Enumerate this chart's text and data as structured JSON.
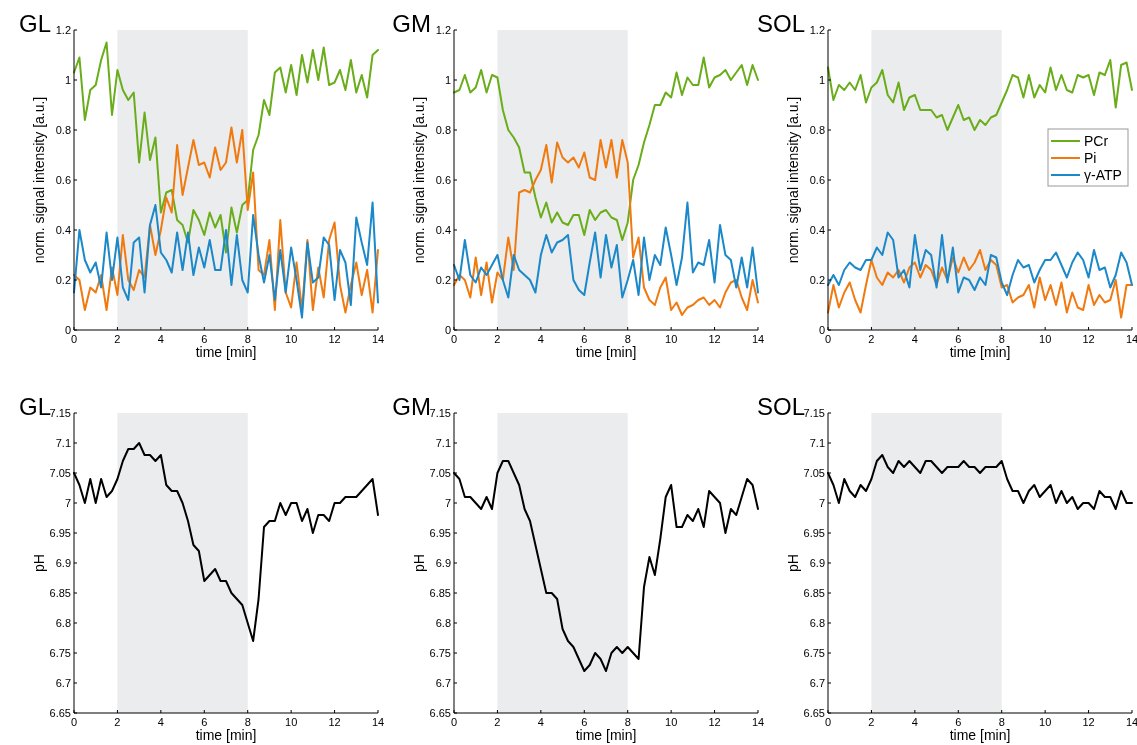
{
  "chart_data": [
    {
      "type": "line",
      "title": "GL",
      "xlabel": "time [min]",
      "ylabel": "norm. signal intensity [a.u.]",
      "xlim": [
        0,
        14
      ],
      "xticks": [
        0,
        2,
        4,
        6,
        8,
        10,
        12,
        14
      ],
      "ylim": [
        0,
        1.2
      ],
      "yticks": [
        0,
        0.2,
        0.4,
        0.6,
        0.8,
        1,
        1.2
      ],
      "bands": [
        {
          "axis": "x",
          "from": 2,
          "to": 8,
          "color": "#ebecee"
        }
      ],
      "legend": false,
      "line_style": "solid",
      "x": [
        0,
        0.25,
        0.5,
        0.75,
        1,
        1.25,
        1.5,
        1.75,
        2,
        2.25,
        2.5,
        2.75,
        3,
        3.25,
        3.5,
        3.75,
        4,
        4.25,
        4.5,
        4.75,
        5,
        5.25,
        5.5,
        5.75,
        6,
        6.25,
        6.5,
        6.75,
        7,
        7.25,
        7.5,
        7.75,
        8,
        8.25,
        8.5,
        8.75,
        9,
        9.25,
        9.5,
        9.75,
        10,
        10.25,
        10.5,
        10.75,
        11,
        11.25,
        11.5,
        11.75,
        12,
        12.25,
        12.5,
        12.75,
        13,
        13.25,
        13.5,
        13.75,
        14
      ],
      "series": [
        {
          "color": "#6aad1a",
          "values": [
            1.03,
            1.09,
            0.84,
            0.96,
            0.98,
            1.08,
            1.15,
            0.86,
            1.04,
            0.96,
            0.92,
            0.95,
            0.67,
            0.87,
            0.68,
            0.77,
            0.47,
            0.55,
            0.56,
            0.44,
            0.42,
            0.35,
            0.48,
            0.44,
            0.38,
            0.47,
            0.41,
            0.46,
            0.31,
            0.49,
            0.39,
            0.5,
            0.52,
            0.72,
            0.78,
            0.92,
            0.86,
            1.03,
            1.05,
            0.95,
            1.06,
            0.94,
            1.1,
            0.99,
            1.12,
            1.0,
            1.13,
            0.98,
            0.99,
            1.04,
            0.96,
            1.08,
            0.95,
            1.02,
            0.93,
            1.1,
            1.12
          ]
        },
        {
          "color": "#f07a10",
          "values": [
            0.22,
            0.2,
            0.08,
            0.17,
            0.15,
            0.22,
            0.08,
            0.25,
            0.14,
            0.38,
            0.2,
            0.16,
            0.24,
            0.21,
            0.42,
            0.3,
            0.4,
            0.53,
            0.47,
            0.74,
            0.54,
            0.65,
            0.76,
            0.66,
            0.67,
            0.61,
            0.73,
            0.64,
            0.67,
            0.81,
            0.67,
            0.8,
            0.48,
            0.63,
            0.24,
            0.22,
            0.36,
            0.08,
            0.44,
            0.15,
            0.09,
            0.27,
            0.08,
            0.36,
            0.08,
            0.25,
            0.13,
            0.36,
            0.43,
            0.18,
            0.07,
            0.18,
            0.27,
            0.14,
            0.24,
            0.07,
            0.32
          ]
        },
        {
          "color": "#1a88c9",
          "values": [
            0.15,
            0.4,
            0.28,
            0.23,
            0.27,
            0.17,
            0.39,
            0.2,
            0.37,
            0.17,
            0.12,
            0.35,
            0.37,
            0.15,
            0.42,
            0.5,
            0.31,
            0.28,
            0.23,
            0.39,
            0.24,
            0.39,
            0.22,
            0.33,
            0.25,
            0.36,
            0.24,
            0.24,
            0.4,
            0.18,
            0.38,
            0.2,
            0.15,
            0.46,
            0.3,
            0.19,
            0.3,
            0.12,
            0.32,
            0.15,
            0.33,
            0.2,
            0.05,
            0.35,
            0.19,
            0.21,
            0.37,
            0.34,
            0.12,
            0.32,
            0.27,
            0.1,
            0.45,
            0.35,
            0.26,
            0.51,
            0.11
          ]
        }
      ]
    },
    {
      "type": "line",
      "title": "GM",
      "xlabel": "time [min]",
      "ylabel": "norm. signal intensity [a.u.]",
      "xlim": [
        0,
        14
      ],
      "xticks": [
        0,
        2,
        4,
        6,
        8,
        10,
        12,
        14
      ],
      "ylim": [
        0,
        1.2
      ],
      "yticks": [
        0,
        0.2,
        0.4,
        0.6,
        0.8,
        1,
        1.2
      ],
      "bands": [
        {
          "axis": "x",
          "from": 2,
          "to": 8,
          "color": "#ebecee"
        }
      ],
      "legend": false,
      "line_style": "solid",
      "x": [
        0,
        0.25,
        0.5,
        0.75,
        1,
        1.25,
        1.5,
        1.75,
        2,
        2.25,
        2.5,
        2.75,
        3,
        3.25,
        3.5,
        3.75,
        4,
        4.25,
        4.5,
        4.75,
        5,
        5.25,
        5.5,
        5.75,
        6,
        6.25,
        6.5,
        6.75,
        7,
        7.25,
        7.5,
        7.75,
        8,
        8.25,
        8.5,
        8.75,
        9,
        9.25,
        9.5,
        9.75,
        10,
        10.25,
        10.5,
        10.75,
        11,
        11.25,
        11.5,
        11.75,
        12,
        12.25,
        12.5,
        12.75,
        13,
        13.25,
        13.5,
        13.75,
        14
      ],
      "series": [
        {
          "color": "#6aad1a",
          "values": [
            0.95,
            0.96,
            1.02,
            0.95,
            0.97,
            1.04,
            0.95,
            1.02,
            1.01,
            0.88,
            0.8,
            0.77,
            0.73,
            0.63,
            0.63,
            0.53,
            0.45,
            0.51,
            0.43,
            0.47,
            0.43,
            0.42,
            0.46,
            0.46,
            0.38,
            0.48,
            0.44,
            0.47,
            0.48,
            0.45,
            0.44,
            0.36,
            0.43,
            0.6,
            0.66,
            0.75,
            0.82,
            0.9,
            0.9,
            0.95,
            0.93,
            1.03,
            0.94,
            1.01,
            0.98,
            0.98,
            1.09,
            0.97,
            1.01,
            1.02,
            1.04,
            1.0,
            1.03,
            1.06,
            0.98,
            1.06,
            1.0
          ]
        },
        {
          "color": "#f07a10",
          "values": [
            0.18,
            0.22,
            0.2,
            0.13,
            0.29,
            0.14,
            0.27,
            0.11,
            0.23,
            0.2,
            0.37,
            0.24,
            0.55,
            0.56,
            0.55,
            0.6,
            0.64,
            0.74,
            0.59,
            0.75,
            0.69,
            0.67,
            0.69,
            0.65,
            0.71,
            0.61,
            0.6,
            0.76,
            0.65,
            0.76,
            0.61,
            0.76,
            0.67,
            0.29,
            0.37,
            0.17,
            0.12,
            0.1,
            0.17,
            0.21,
            0.08,
            0.11,
            0.06,
            0.09,
            0.1,
            0.12,
            0.13,
            0.1,
            0.12,
            0.09,
            0.15,
            0.19,
            0.2,
            0.13,
            0.08,
            0.2,
            0.11
          ]
        },
        {
          "color": "#1a88c9",
          "values": [
            0.26,
            0.2,
            0.36,
            0.22,
            0.19,
            0.25,
            0.22,
            0.26,
            0.3,
            0.2,
            0.13,
            0.3,
            0.24,
            0.22,
            0.2,
            0.15,
            0.3,
            0.38,
            0.31,
            0.35,
            0.36,
            0.38,
            0.2,
            0.16,
            0.14,
            0.27,
            0.39,
            0.21,
            0.38,
            0.25,
            0.34,
            0.13,
            0.2,
            0.28,
            0.14,
            0.37,
            0.2,
            0.3,
            0.26,
            0.41,
            0.3,
            0.18,
            0.29,
            0.51,
            0.23,
            0.27,
            0.26,
            0.36,
            0.19,
            0.42,
            0.3,
            0.28,
            0.17,
            0.29,
            0.17,
            0.33,
            0.15
          ]
        }
      ]
    },
    {
      "type": "line",
      "title": "SOL",
      "xlabel": "time [min]",
      "ylabel": "norm. signal intensity [a.u.]",
      "xlim": [
        0,
        14
      ],
      "xticks": [
        0,
        2,
        4,
        6,
        8,
        10,
        12,
        14
      ],
      "ylim": [
        0,
        1.2
      ],
      "yticks": [
        0,
        0.2,
        0.4,
        0.6,
        0.8,
        1,
        1.2
      ],
      "bands": [
        {
          "axis": "x",
          "from": 2,
          "to": 8,
          "color": "#ebecee"
        }
      ],
      "legend": "right",
      "line_style": "solid",
      "x": [
        0,
        0.25,
        0.5,
        0.75,
        1,
        1.25,
        1.5,
        1.75,
        2,
        2.25,
        2.5,
        2.75,
        3,
        3.25,
        3.5,
        3.75,
        4,
        4.25,
        4.5,
        4.75,
        5,
        5.25,
        5.5,
        5.75,
        6,
        6.25,
        6.5,
        6.75,
        7,
        7.25,
        7.5,
        7.75,
        8,
        8.25,
        8.5,
        8.75,
        9,
        9.25,
        9.5,
        9.75,
        10,
        10.25,
        10.5,
        10.75,
        11,
        11.25,
        11.5,
        11.75,
        12,
        12.25,
        12.5,
        12.75,
        13,
        13.25,
        13.5,
        13.75,
        14
      ],
      "series": [
        {
          "name": "PCr",
          "color": "#6aad1a",
          "values": [
            1.05,
            0.92,
            0.98,
            0.96,
            0.99,
            0.96,
            1.02,
            0.91,
            0.97,
            0.99,
            1.04,
            0.94,
            0.91,
            0.99,
            0.88,
            0.93,
            0.94,
            0.88,
            0.88,
            0.88,
            0.85,
            0.86,
            0.8,
            0.85,
            0.9,
            0.84,
            0.85,
            0.8,
            0.84,
            0.82,
            0.85,
            0.86,
            0.91,
            0.96,
            1.02,
            1.01,
            0.93,
            1.02,
            0.93,
            0.98,
            0.95,
            1.05,
            0.96,
            1.02,
            0.96,
            0.95,
            1.02,
            1.01,
            1.02,
            0.94,
            1.03,
            1.02,
            1.08,
            0.89,
            1.06,
            1.07,
            0.96
          ]
        },
        {
          "name": "Pi",
          "color": "#f07a10",
          "values": [
            0.07,
            0.18,
            0.09,
            0.15,
            0.19,
            0.12,
            0.07,
            0.18,
            0.28,
            0.21,
            0.18,
            0.23,
            0.21,
            0.24,
            0.19,
            0.25,
            0.27,
            0.21,
            0.26,
            0.24,
            0.18,
            0.25,
            0.2,
            0.29,
            0.23,
            0.29,
            0.24,
            0.27,
            0.32,
            0.24,
            0.28,
            0.26,
            0.17,
            0.18,
            0.11,
            0.13,
            0.14,
            0.18,
            0.09,
            0.21,
            0.12,
            0.18,
            0.1,
            0.19,
            0.07,
            0.15,
            0.09,
            0.08,
            0.18,
            0.1,
            0.14,
            0.11,
            0.12,
            0.2,
            0.05,
            0.18,
            0.18
          ]
        },
        {
          "name": "γ-ATP",
          "color": "#1a88c9",
          "values": [
            0.18,
            0.22,
            0.18,
            0.24,
            0.27,
            0.25,
            0.24,
            0.28,
            0.28,
            0.33,
            0.3,
            0.39,
            0.36,
            0.21,
            0.24,
            0.17,
            0.38,
            0.24,
            0.32,
            0.3,
            0.17,
            0.38,
            0.19,
            0.33,
            0.15,
            0.21,
            0.2,
            0.16,
            0.21,
            0.18,
            0.3,
            0.29,
            0.19,
            0.14,
            0.22,
            0.28,
            0.25,
            0.26,
            0.19,
            0.24,
            0.28,
            0.28,
            0.31,
            0.26,
            0.21,
            0.27,
            0.31,
            0.28,
            0.21,
            0.32,
            0.24,
            0.25,
            0.17,
            0.22,
            0.31,
            0.27,
            0.18
          ]
        }
      ]
    },
    {
      "type": "line",
      "title": "GL",
      "xlabel": "time [min]",
      "ylabel": "pH",
      "xlim": [
        0,
        14
      ],
      "xticks": [
        0,
        2,
        4,
        6,
        8,
        10,
        12,
        14
      ],
      "ylim": [
        6.65,
        7.15
      ],
      "yticks": [
        6.65,
        6.7,
        6.75,
        6.8,
        6.85,
        6.9,
        6.95,
        7,
        7.05,
        7.1,
        7.15
      ],
      "bands": [
        {
          "axis": "x",
          "from": 2,
          "to": 8,
          "color": "#ebecee"
        }
      ],
      "legend": false,
      "line_style": "solid",
      "x": [
        0,
        0.25,
        0.5,
        0.75,
        1,
        1.25,
        1.5,
        1.75,
        2,
        2.25,
        2.5,
        2.75,
        3,
        3.25,
        3.5,
        3.75,
        4,
        4.25,
        4.5,
        4.75,
        5,
        5.25,
        5.5,
        5.75,
        6,
        6.25,
        6.5,
        6.75,
        7,
        7.25,
        7.5,
        7.75,
        8,
        8.25,
        8.5,
        8.75,
        9,
        9.25,
        9.5,
        9.75,
        10,
        10.25,
        10.5,
        10.75,
        11,
        11.25,
        11.5,
        11.75,
        12,
        12.25,
        12.5,
        12.75,
        13,
        13.25,
        13.5,
        13.75,
        14
      ],
      "series": [
        {
          "color": "#000000",
          "values": [
            7.05,
            7.03,
            7.0,
            7.04,
            7.0,
            7.04,
            7.01,
            7.02,
            7.04,
            7.07,
            7.09,
            7.09,
            7.1,
            7.08,
            7.08,
            7.07,
            7.08,
            7.03,
            7.02,
            7.02,
            7.0,
            6.97,
            6.93,
            6.92,
            6.87,
            6.88,
            6.89,
            6.87,
            6.87,
            6.85,
            6.84,
            6.83,
            6.8,
            6.77,
            6.84,
            6.96,
            6.97,
            6.97,
            7.0,
            6.98,
            7.0,
            7.0,
            6.97,
            6.99,
            6.95,
            6.98,
            6.98,
            6.97,
            7.0,
            7.0,
            7.01,
            7.01,
            7.01,
            7.02,
            7.03,
            7.04,
            6.98
          ]
        }
      ]
    },
    {
      "type": "line",
      "title": "GM",
      "xlabel": "time [min]",
      "ylabel": "pH",
      "xlim": [
        0,
        14
      ],
      "xticks": [
        0,
        2,
        4,
        6,
        8,
        10,
        12,
        14
      ],
      "ylim": [
        6.65,
        7.15
      ],
      "yticks": [
        6.65,
        6.7,
        6.75,
        6.8,
        6.85,
        6.9,
        6.95,
        7,
        7.05,
        7.1,
        7.15
      ],
      "bands": [
        {
          "axis": "x",
          "from": 2,
          "to": 8,
          "color": "#ebecee"
        }
      ],
      "legend": false,
      "line_style": "solid",
      "x": [
        0,
        0.25,
        0.5,
        0.75,
        1,
        1.25,
        1.5,
        1.75,
        2,
        2.25,
        2.5,
        2.75,
        3,
        3.25,
        3.5,
        3.75,
        4,
        4.25,
        4.5,
        4.75,
        5,
        5.25,
        5.5,
        5.75,
        6,
        6.25,
        6.5,
        6.75,
        7,
        7.25,
        7.5,
        7.75,
        8,
        8.25,
        8.5,
        8.75,
        9,
        9.25,
        9.5,
        9.75,
        10,
        10.25,
        10.5,
        10.75,
        11,
        11.25,
        11.5,
        11.75,
        12,
        12.25,
        12.5,
        12.75,
        13,
        13.25,
        13.5,
        13.75,
        14
      ],
      "series": [
        {
          "color": "#000000",
          "values": [
            7.05,
            7.04,
            7.01,
            7.01,
            7.0,
            6.99,
            7.01,
            6.99,
            7.05,
            7.07,
            7.07,
            7.05,
            7.03,
            6.99,
            6.97,
            6.93,
            6.89,
            6.85,
            6.85,
            6.84,
            6.79,
            6.77,
            6.76,
            6.74,
            6.72,
            6.73,
            6.75,
            6.74,
            6.72,
            6.75,
            6.76,
            6.75,
            6.76,
            6.75,
            6.74,
            6.86,
            6.91,
            6.88,
            6.94,
            7.01,
            7.03,
            6.96,
            6.96,
            6.98,
            6.97,
            6.99,
            6.96,
            7.02,
            7.01,
            7.0,
            6.95,
            6.99,
            6.98,
            7.01,
            7.04,
            7.03,
            6.99
          ]
        }
      ]
    },
    {
      "type": "line",
      "title": "SOL",
      "xlabel": "time [min]",
      "ylabel": "pH",
      "xlim": [
        0,
        14
      ],
      "xticks": [
        0,
        2,
        4,
        6,
        8,
        10,
        12,
        14
      ],
      "ylim": [
        6.65,
        7.15
      ],
      "yticks": [
        6.65,
        6.7,
        6.75,
        6.8,
        6.85,
        6.9,
        6.95,
        7,
        7.05,
        7.1,
        7.15
      ],
      "bands": [
        {
          "axis": "x",
          "from": 2,
          "to": 8,
          "color": "#ebecee"
        }
      ],
      "legend": false,
      "line_style": "solid",
      "x": [
        0,
        0.25,
        0.5,
        0.75,
        1,
        1.25,
        1.5,
        1.75,
        2,
        2.25,
        2.5,
        2.75,
        3,
        3.25,
        3.5,
        3.75,
        4,
        4.25,
        4.5,
        4.75,
        5,
        5.25,
        5.5,
        5.75,
        6,
        6.25,
        6.5,
        6.75,
        7,
        7.25,
        7.5,
        7.75,
        8,
        8.25,
        8.5,
        8.75,
        9,
        9.25,
        9.5,
        9.75,
        10,
        10.25,
        10.5,
        10.75,
        11,
        11.25,
        11.5,
        11.75,
        12,
        12.25,
        12.5,
        12.75,
        13,
        13.25,
        13.5,
        13.75,
        14
      ],
      "series": [
        {
          "color": "#000000",
          "values": [
            7.05,
            7.03,
            7.0,
            7.04,
            7.02,
            7.01,
            7.03,
            7.02,
            7.04,
            7.07,
            7.08,
            7.06,
            7.05,
            7.07,
            7.06,
            7.07,
            7.06,
            7.05,
            7.07,
            7.07,
            7.06,
            7.05,
            7.06,
            7.06,
            7.06,
            7.07,
            7.06,
            7.06,
            7.05,
            7.06,
            7.06,
            7.06,
            7.07,
            7.04,
            7.02,
            7.02,
            7.0,
            7.02,
            7.03,
            7.01,
            7.02,
            7.03,
            7.0,
            7.02,
            7.0,
            7.01,
            6.99,
            7.0,
            7.0,
            6.99,
            7.02,
            7.01,
            7.01,
            6.99,
            7.02,
            7.0,
            7.0
          ]
        }
      ]
    }
  ]
}
